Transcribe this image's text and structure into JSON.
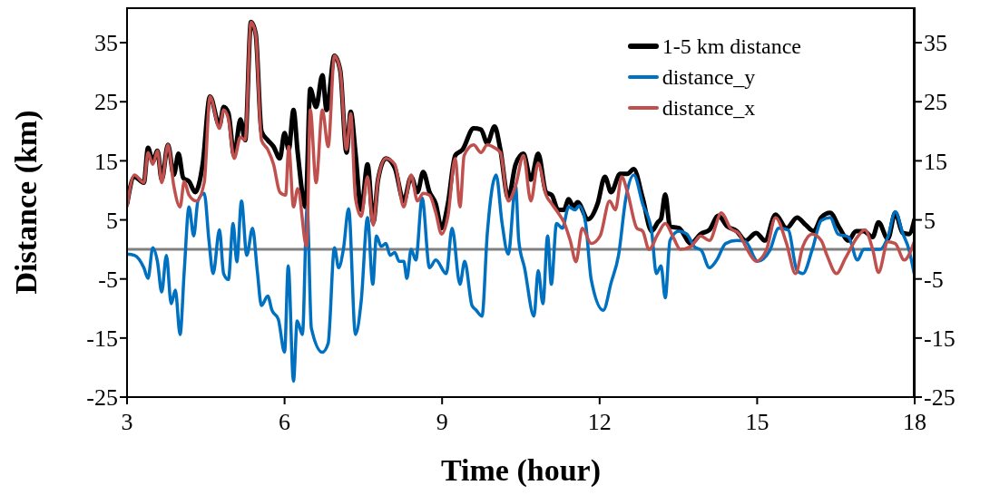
{
  "chart_data": {
    "type": "line",
    "xlabel": "Time (hour)",
    "ylabel": "Distance (km)",
    "xlim": [
      3,
      18
    ],
    "xticks": [
      3,
      6,
      9,
      12,
      15,
      18
    ],
    "ylim": [
      -25,
      41
    ],
    "yticks": [
      -25,
      -15,
      -5,
      5,
      15,
      25,
      35
    ],
    "y2lim": [
      -25,
      41
    ],
    "y2ticks": [
      -25,
      -15,
      -5,
      5,
      15,
      25,
      35
    ],
    "legend": "top right",
    "ref_lines": [
      {
        "axis": "y",
        "value": 0,
        "color": "#808080"
      }
    ],
    "series": [
      {
        "name": "1-5 km distance",
        "color": "#000000",
        "x": [
          3.0,
          3.14,
          3.32,
          3.4,
          3.49,
          3.58,
          3.66,
          3.78,
          3.89,
          3.98,
          4.07,
          4.18,
          4.3,
          4.44,
          4.58,
          4.76,
          4.84,
          4.93,
          5.04,
          5.16,
          5.25,
          5.36,
          5.45,
          5.56,
          5.68,
          5.79,
          5.91,
          6.0,
          6.08,
          6.17,
          6.25,
          6.4,
          6.49,
          6.6,
          6.72,
          6.8,
          6.95,
          7.06,
          7.18,
          7.26,
          7.35,
          7.46,
          7.58,
          7.69,
          7.78,
          7.93,
          8.1,
          8.27,
          8.41,
          8.53,
          8.64,
          8.76,
          8.88,
          8.99,
          9.11,
          9.25,
          9.39,
          9.6,
          9.74,
          9.86,
          10.0,
          10.11,
          10.26,
          10.4,
          10.55,
          10.69,
          10.83,
          10.98,
          11.09,
          11.21,
          11.32,
          11.41,
          11.5,
          11.58,
          11.78,
          11.96,
          12.1,
          12.22,
          12.39,
          12.53,
          12.65,
          12.82,
          12.99,
          13.11,
          13.17,
          13.25,
          13.34,
          13.51,
          13.74,
          13.92,
          14.09,
          14.26,
          14.43,
          14.61,
          14.78,
          14.98,
          15.15,
          15.35,
          15.56,
          15.76,
          15.93,
          16.08,
          16.22,
          16.39,
          16.57,
          16.74,
          16.88,
          17.03,
          17.2,
          17.31,
          17.49,
          17.63,
          17.77,
          17.89,
          18.0
        ],
        "values": [
          7.7,
          12.3,
          11.3,
          17.2,
          14.9,
          16.7,
          11.8,
          17.7,
          12.6,
          16.2,
          12.1,
          11.5,
          9.7,
          14.4,
          25.9,
          21,
          24.1,
          23.1,
          15.9,
          22,
          18.5,
          38.5,
          36.5,
          20,
          18.5,
          17.4,
          15.4,
          19.7,
          16.9,
          23.6,
          16.4,
          7.2,
          27.2,
          24.1,
          29.5,
          23.6,
          32.8,
          30.3,
          16.4,
          23.3,
          16.4,
          6.7,
          14.4,
          4.6,
          11.8,
          15.4,
          13.8,
          8.2,
          12.3,
          9.7,
          13.1,
          9.7,
          7.7,
          3.6,
          7.7,
          15.9,
          16.9,
          20.5,
          20.3,
          18,
          20.8,
          16.9,
          8.7,
          14.4,
          16.2,
          11.8,
          16.2,
          9.7,
          9.2,
          6.7,
          6.7,
          8.5,
          7.2,
          8,
          5.1,
          7.7,
          12.3,
          9.7,
          12.8,
          12.8,
          13.6,
          8.7,
          3.1,
          4.6,
          5.2,
          9.3,
          3.9,
          3.6,
          1,
          2.6,
          3.3,
          5.7,
          3.9,
          3.1,
          1.5,
          2.8,
          1.5,
          5.9,
          3.6,
          5.4,
          4.1,
          3.1,
          5.4,
          6.2,
          3.6,
          1.5,
          3.1,
          3.1,
          2.1,
          4.6,
          1.8,
          6.2,
          2.8,
          2.6,
          5.2
        ]
      },
      {
        "name": "distance_y",
        "color": "#0070c0",
        "x": [
          3.0,
          3.14,
          3.32,
          3.4,
          3.49,
          3.58,
          3.66,
          3.75,
          3.84,
          3.92,
          4.01,
          4.09,
          4.18,
          4.27,
          4.35,
          4.47,
          4.56,
          4.64,
          4.76,
          4.84,
          4.93,
          5.02,
          5.09,
          5.18,
          5.28,
          5.39,
          5.48,
          5.56,
          5.68,
          5.76,
          5.88,
          6.0,
          6.07,
          6.17,
          6.24,
          6.34,
          6.43,
          6.51,
          6.72,
          6.83,
          6.95,
          7.03,
          7.12,
          7.22,
          7.35,
          7.46,
          7.58,
          7.68,
          7.75,
          7.84,
          7.93,
          8.01,
          8.1,
          8.18,
          8.27,
          8.33,
          8.41,
          8.5,
          8.62,
          8.76,
          8.88,
          9.08,
          9.19,
          9.34,
          9.43,
          9.57,
          9.65,
          9.76,
          9.86,
          10.03,
          10.14,
          10.26,
          10.4,
          10.46,
          10.57,
          10.75,
          10.83,
          10.92,
          11.01,
          11.08,
          11.18,
          11.29,
          11.41,
          11.53,
          11.61,
          11.73,
          11.84,
          12.07,
          12.22,
          12.36,
          12.5,
          12.65,
          12.82,
          12.99,
          13.08,
          13.17,
          13.25,
          13.34,
          13.51,
          13.66,
          13.8,
          13.94,
          14.09,
          14.23,
          14.4,
          14.61,
          14.78,
          15.01,
          15.24,
          15.41,
          15.59,
          15.76,
          15.87,
          16.05,
          16.22,
          16.39,
          16.54,
          16.74,
          16.91,
          17.03,
          17.2,
          17.34,
          17.49,
          17.63,
          17.77,
          17.89,
          17.99
        ],
        "values": [
          -0.8,
          -1,
          -3.1,
          -4.9,
          0.3,
          -2.1,
          -7.2,
          -1,
          -9.2,
          -6.9,
          -14.4,
          -3.6,
          7.2,
          2.3,
          8.2,
          9.5,
          1.5,
          -4.1,
          3.3,
          -4.1,
          -5.1,
          4.4,
          -2.1,
          8.2,
          -1,
          3.6,
          -3.6,
          -9.5,
          -7.9,
          -10.3,
          -11.8,
          -17.4,
          -2.8,
          -22.3,
          -12.1,
          -14.4,
          7.2,
          -13.3,
          -17.4,
          -15.9,
          0.3,
          -3.1,
          0,
          6.9,
          -14.4,
          -8.7,
          5.4,
          -5.9,
          2.3,
          0.5,
          1,
          -1,
          -0.5,
          -2,
          -2,
          -4.9,
          0,
          -1.8,
          8.7,
          -3.1,
          -1.8,
          -4.1,
          3.6,
          -5.9,
          -2,
          -9.5,
          -10.3,
          -11.3,
          2.6,
          12.6,
          4.6,
          -0.8,
          10.8,
          1.5,
          -3.1,
          -11.3,
          -3.6,
          -9.2,
          2.3,
          -5.9,
          4.4,
          3.6,
          7.2,
          6.7,
          7.4,
          4.6,
          -5.1,
          -10.3,
          -5.6,
          -1,
          8.7,
          12.6,
          7.7,
          3.1,
          -4.1,
          -2.8,
          -8.2,
          1.5,
          3.1,
          2.6,
          0.5,
          -0.2,
          -3.1,
          -1.8,
          1,
          1.5,
          1.3,
          -2,
          -0.2,
          3.6,
          3.3,
          -3.6,
          -4.1,
          0,
          4.9,
          5.4,
          2.6,
          2.1,
          -1.8,
          0,
          0,
          0,
          2.1,
          6.4,
          2.8,
          0,
          -4.1
        ]
      },
      {
        "name": "distance_x",
        "color": "#c0504d",
        "x": [
          3.0,
          3.14,
          3.32,
          3.4,
          3.49,
          3.58,
          3.66,
          3.78,
          3.89,
          4.01,
          4.09,
          4.18,
          4.32,
          4.47,
          4.58,
          4.76,
          4.84,
          4.93,
          5.04,
          5.16,
          5.25,
          5.36,
          5.45,
          5.56,
          5.68,
          5.79,
          5.91,
          6.02,
          6.08,
          6.17,
          6.25,
          6.42,
          6.49,
          6.6,
          6.72,
          6.83,
          6.95,
          7.06,
          7.18,
          7.26,
          7.35,
          7.46,
          7.58,
          7.69,
          7.78,
          7.93,
          8.1,
          8.27,
          8.41,
          8.53,
          8.64,
          8.76,
          8.88,
          8.99,
          9.11,
          9.25,
          9.34,
          9.42,
          9.6,
          9.74,
          9.86,
          10.0,
          10.11,
          10.26,
          10.4,
          10.55,
          10.69,
          10.83,
          10.98,
          11.09,
          11.21,
          11.32,
          11.44,
          11.55,
          11.67,
          11.84,
          12.01,
          12.19,
          12.3,
          12.42,
          12.53,
          12.71,
          12.82,
          12.94,
          13.11,
          13.25,
          13.4,
          13.54,
          13.74,
          13.92,
          14.09,
          14.32,
          14.49,
          14.66,
          14.81,
          14.98,
          15.18,
          15.35,
          15.56,
          15.73,
          15.87,
          16.05,
          16.22,
          16.33,
          16.51,
          16.68,
          16.91,
          17.05,
          17.2,
          17.31,
          17.49,
          17.63,
          17.8,
          18.0
        ],
        "values": [
          7.2,
          12.6,
          11.3,
          16.4,
          14.4,
          16.7,
          11.3,
          17.7,
          10.8,
          7.2,
          11.5,
          9.2,
          8.2,
          11.3,
          25.9,
          20.5,
          23.6,
          22.1,
          15.4,
          19,
          18.5,
          38.5,
          36.5,
          18.5,
          16.9,
          14.4,
          9.7,
          9.2,
          17.4,
          7.2,
          10.3,
          0.5,
          23.6,
          11.3,
          23.6,
          17.4,
          32.8,
          30.3,
          16.9,
          23,
          8.7,
          5.6,
          12.3,
          4.1,
          11.8,
          15.4,
          14.4,
          7.2,
          12.6,
          8.2,
          9.5,
          9.2,
          6.2,
          2.6,
          5.6,
          15.4,
          7.2,
          15.9,
          17.7,
          16.4,
          17.7,
          17.2,
          16.4,
          8.2,
          10.8,
          15.9,
          8.2,
          14.6,
          9.2,
          7.7,
          6.2,
          4.6,
          1.5,
          -2.1,
          3.6,
          1,
          2.3,
          8.2,
          6.7,
          12.3,
          9.7,
          3.6,
          3.1,
          0,
          2.6,
          4.4,
          2.1,
          0,
          0.5,
          2.3,
          1.5,
          6.2,
          3.6,
          2.6,
          0,
          -2,
          0,
          5.4,
          1,
          -4.1,
          0.5,
          2.6,
          1.5,
          -1,
          -4.1,
          -1.5,
          2.1,
          3.3,
          0,
          -3.9,
          1.3,
          1,
          -1.8,
          1.5
        ]
      }
    ]
  }
}
